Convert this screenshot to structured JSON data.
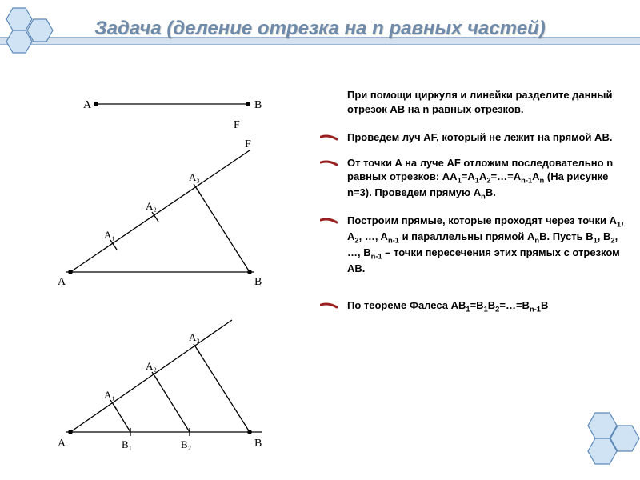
{
  "title": "Задача (деление отрезка на n равных частей)",
  "intro": "При помощи циркуля и линейки разделите данный отрезок AB на n равных отрезков.",
  "bullets": [
    "Проведем луч AF, который не лежит на прямой AB.",
    "От точки A на луче AF отложим последовательно n равных отрезков: AA<sub>1</sub>=A<sub>1</sub>A<sub>2</sub>=…=A<sub>n-1</sub>A<sub>n</sub> (На рисунке n=3). Проведем прямую A<sub>n</sub>B.",
    "Построим прямые, которые проходят через точки A<sub>1</sub>, A<sub>2</sub>, …, A<sub>n-1</sub> и параллельны прямой A<sub>n</sub>B. Пусть B<sub>1</sub>, B<sub>2</sub>, …, B<sub>n-1</sub> – точки пересечения этих прямых с отрезком AB.",
    "По теореме Фалеса AB<sub>1</sub>=B<sub>1</sub>B<sub>2</sub>=…=B<sub>n-1</sub>B"
  ],
  "colors": {
    "title": "#6f8ba9",
    "band_bg": "#d6e1ee",
    "band_line": "#98b6d6",
    "hex_fill": "#cfe3f5",
    "hex_stroke": "#5d88b8",
    "tick": "#9a1f1f",
    "diagram_stroke": "#000000"
  },
  "diagram": {
    "labels_top": {
      "A": "A",
      "B": "B",
      "F": "F"
    },
    "segment_labels": [
      "A₁",
      "A₂",
      "A₃"
    ],
    "base_pts": [
      "B₁",
      "B₂"
    ],
    "label_fontsize": 14,
    "stroke_width": 1.3
  }
}
